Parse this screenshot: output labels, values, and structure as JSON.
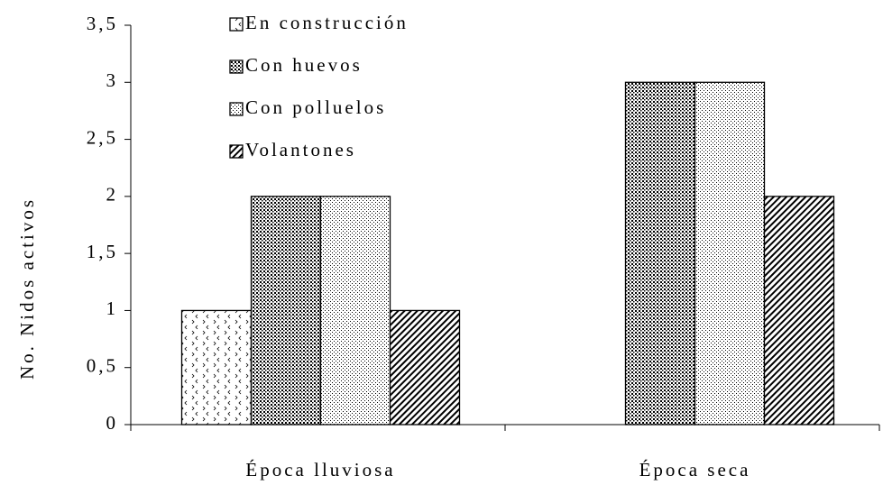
{
  "chart_data": {
    "type": "bar",
    "y_label": "No. Nidos activos",
    "categories": [
      "Época lluviosa",
      "Época seca"
    ],
    "series": [
      {
        "name": "En construcción",
        "color": "#000000",
        "values": [
          1,
          0
        ]
      },
      {
        "name": "Con huevos",
        "color": "#000000",
        "values": [
          2,
          3
        ]
      },
      {
        "name": "Con polluelos",
        "color": "#000000",
        "values": [
          2,
          3
        ]
      },
      {
        "name": "Volantones",
        "color": "#000000",
        "values": [
          1,
          2
        ]
      }
    ],
    "ylim": [
      0,
      3.5
    ],
    "yticks": [
      0,
      {
        "value": 0.5,
        "label": "0,5"
      },
      1,
      {
        "value": 1.5,
        "label": "1,5"
      },
      2,
      {
        "value": 2.5,
        "label": "2,5"
      },
      3,
      {
        "value": 3.5,
        "label": "3,5"
      }
    ],
    "grid": false,
    "legend": "top-left"
  }
}
